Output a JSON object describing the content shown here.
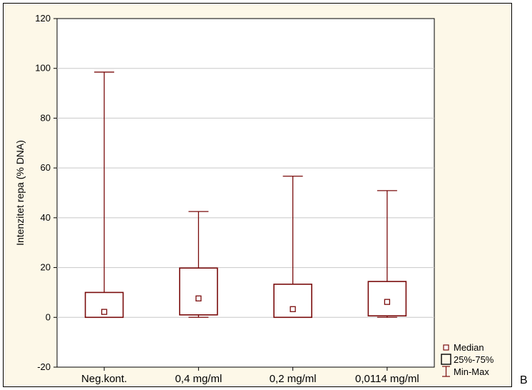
{
  "chart_data": {
    "type": "box",
    "title": "",
    "xlabel": "",
    "ylabel": "Intenzitet repa (% DNA)",
    "ylim": [
      -20,
      120
    ],
    "yticks": [
      -20,
      0,
      20,
      40,
      60,
      80,
      100,
      120
    ],
    "grid": true,
    "categories": [
      "Neg.kont.",
      "0,4 mg/ml",
      "0,2 mg/ml",
      "0,0114 mg/ml"
    ],
    "series": [
      {
        "category": "Neg.kont.",
        "min": 0.0,
        "q1": 0.0,
        "median": 2.2,
        "q3": 10.0,
        "max": 98.5
      },
      {
        "category": "0,4 mg/ml",
        "min": 0.0,
        "q1": 1.0,
        "median": 7.6,
        "q3": 19.8,
        "max": 42.5
      },
      {
        "category": "0,2 mg/ml",
        "min": 0.0,
        "q1": 0.0,
        "median": 3.3,
        "q3": 13.3,
        "max": 56.7
      },
      {
        "category": "0,0114 mg/ml",
        "min": 0.0,
        "q1": 0.6,
        "median": 6.2,
        "q3": 14.4,
        "max": 50.9
      }
    ],
    "legend": {
      "position": "bottom-right",
      "entries": [
        "Median",
        "25%-75%",
        "Min-Max"
      ]
    },
    "colors": {
      "box": "#7a0c0c",
      "plot_bg": "#ffffff",
      "frame_bg": "#fdf8e8",
      "grid": "#c8c8c8"
    }
  },
  "panel_letter": "B"
}
